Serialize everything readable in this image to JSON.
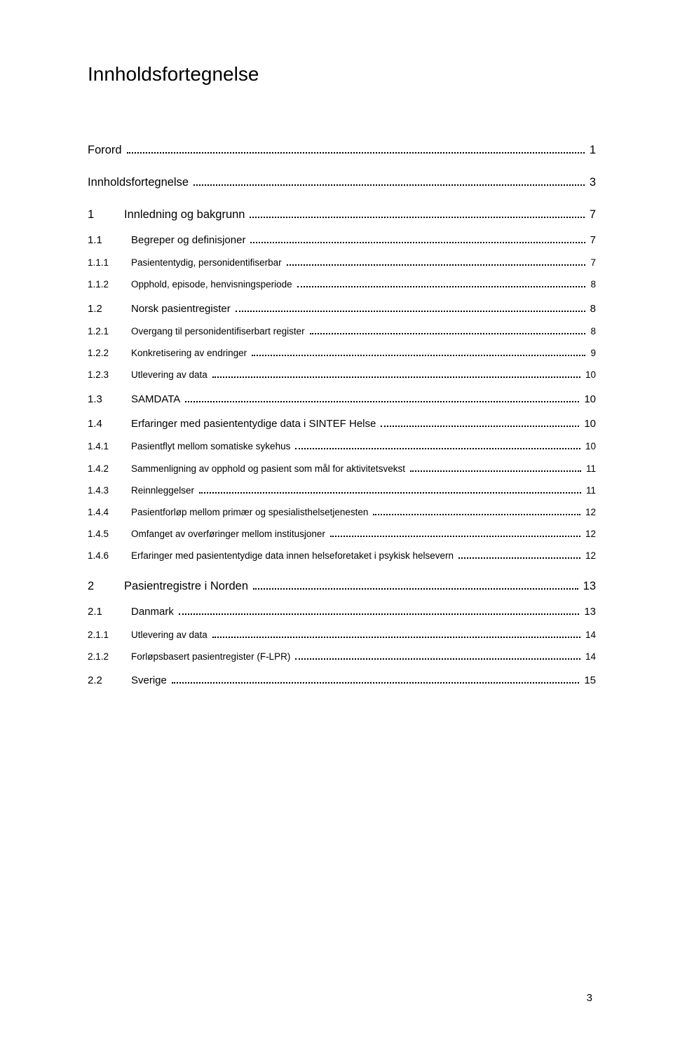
{
  "title": "Innholdsfortegnelse",
  "page_number": "3",
  "entries": [
    {
      "level": 1,
      "num": "",
      "label": "Forord",
      "page": "1",
      "nonum": true
    },
    {
      "level": 1,
      "num": "",
      "label": "Innholdsfortegnelse",
      "page": "3",
      "nonum": true
    },
    {
      "level": 1,
      "num": "1",
      "label": "Innledning og bakgrunn",
      "page": "7"
    },
    {
      "level": 2,
      "num": "1.1",
      "label": "Begreper og definisjoner",
      "page": "7"
    },
    {
      "level": 3,
      "num": "1.1.1",
      "label": "Pasiententydig, personidentifiserbar",
      "page": "7"
    },
    {
      "level": 3,
      "num": "1.1.2",
      "label": "Opphold, episode, henvisningsperiode",
      "page": "8"
    },
    {
      "level": 2,
      "num": "1.2",
      "label": "Norsk pasientregister",
      "page": "8"
    },
    {
      "level": 3,
      "num": "1.2.1",
      "label": "Overgang til personidentifiserbart register",
      "page": "8"
    },
    {
      "level": 3,
      "num": "1.2.2",
      "label": "Konkretisering av endringer",
      "page": "9"
    },
    {
      "level": 3,
      "num": "1.2.3",
      "label": "Utlevering av data",
      "page": "10"
    },
    {
      "level": 2,
      "num": "1.3",
      "label": "SAMDATA",
      "page": "10"
    },
    {
      "level": 2,
      "num": "1.4",
      "label": "Erfaringer med pasiententydige data i SINTEF Helse",
      "page": "10"
    },
    {
      "level": 3,
      "num": "1.4.1",
      "label": "Pasientflyt mellom somatiske sykehus",
      "page": "10"
    },
    {
      "level": 3,
      "num": "1.4.2",
      "label": "Sammenligning av opphold og pasient som mål for aktivitetsvekst",
      "page": "11"
    },
    {
      "level": 3,
      "num": "1.4.3",
      "label": "Reinnleggelser",
      "page": "11"
    },
    {
      "level": 3,
      "num": "1.4.4",
      "label": "Pasientforløp mellom primær og spesialisthelsetjenesten",
      "page": "12"
    },
    {
      "level": 3,
      "num": "1.4.5",
      "label": "Omfanget av overføringer mellom institusjoner",
      "page": "12"
    },
    {
      "level": 3,
      "num": "1.4.6",
      "label": "Erfaringer med pasiententydige data innen helseforetaket i psykisk helsevern",
      "page": "12"
    },
    {
      "level": 1,
      "num": "2",
      "label": "Pasientregistre i Norden",
      "page": "13"
    },
    {
      "level": 2,
      "num": "2.1",
      "label": "Danmark",
      "page": "13"
    },
    {
      "level": 3,
      "num": "2.1.1",
      "label": "Utlevering av data",
      "page": "14"
    },
    {
      "level": 3,
      "num": "2.1.2",
      "label": "Forløpsbasert pasientregister (F-LPR)",
      "page": "14"
    },
    {
      "level": 2,
      "num": "2.2",
      "label": "Sverige",
      "page": "15"
    }
  ]
}
